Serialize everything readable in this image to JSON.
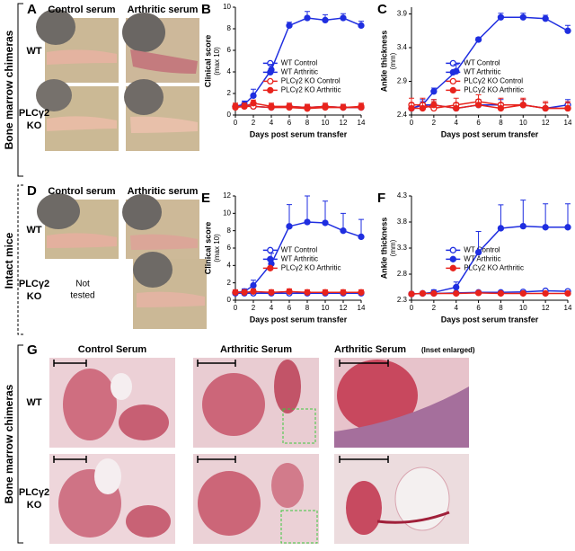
{
  "figure": {
    "panel_a": {
      "letter": "A",
      "columns": [
        "Control serum",
        "Arthritic serum"
      ],
      "rows": [
        [
          "WT"
        ],
        [
          "PLCγ2",
          "KO"
        ]
      ]
    },
    "panel_d": {
      "letter": "D",
      "columns": [
        "Control serum",
        "Arthritic serum"
      ],
      "rows": [
        [
          "WT"
        ],
        [
          "PLCγ2",
          "KO"
        ]
      ],
      "note": [
        "Not",
        "tested"
      ]
    },
    "panel_g": {
      "letter": "G",
      "columns": [
        "Control Serum",
        "Arthritic Serum",
        "Arthritic Serum"
      ],
      "column_note": "(Inset enlarged)",
      "rows": [
        [
          "WT"
        ],
        [
          "PLCγ2",
          "KO"
        ]
      ]
    },
    "side_labels": [
      "Bone marrow chimeras",
      "Intact mice",
      "Bone marrow chimeras"
    ]
  },
  "chart_data": [
    {
      "type": "line",
      "panel": "B",
      "ylabel": "Clinical score",
      "ylabel_note": "(max 10)",
      "xlabel": "Days post serum transfer",
      "x": [
        0,
        1,
        2,
        4,
        6,
        8,
        10,
        12,
        14
      ],
      "xlim": [
        0,
        14
      ],
      "xticks": [
        0,
        2,
        4,
        6,
        8,
        10,
        12,
        14
      ],
      "ylim": [
        0,
        10
      ],
      "yticks": [
        0,
        2,
        4,
        6,
        8,
        10
      ],
      "series": [
        {
          "name": "WT Control",
          "color": "#1f2ee0",
          "filled": false,
          "values": [
            0.8,
            0.9,
            0.8,
            0.7,
            0.8,
            0.7,
            0.8,
            0.7,
            0.7
          ],
          "errors": [
            0.2,
            0.2,
            0.2,
            0.2,
            0.2,
            0.2,
            0.2,
            0.2,
            0.2
          ]
        },
        {
          "name": "WT Arthritic",
          "color": "#1f2ee0",
          "filled": true,
          "values": [
            0.8,
            1.0,
            1.8,
            4.2,
            8.3,
            9.0,
            8.8,
            9.0,
            8.3
          ],
          "errors": [
            0.2,
            0.3,
            0.6,
            0.5,
            0.3,
            0.6,
            0.5,
            0.4,
            0.4
          ]
        },
        {
          "name": "PLCγ2 KO Control",
          "color": "#e8231c",
          "filled": false,
          "values": [
            0.7,
            0.8,
            0.8,
            0.7,
            0.7,
            0.6,
            0.7,
            0.7,
            0.7
          ],
          "errors": [
            0.3,
            0.3,
            0.3,
            0.3,
            0.3,
            0.3,
            0.3,
            0.3,
            0.3
          ]
        },
        {
          "name": "PLCγ2 KO Arthritic",
          "color": "#e8231c",
          "filled": true,
          "values": [
            0.8,
            0.8,
            1.1,
            0.8,
            0.8,
            0.7,
            0.8,
            0.7,
            0.8
          ],
          "errors": [
            0.3,
            0.3,
            0.3,
            0.3,
            0.3,
            0.3,
            0.3,
            0.3,
            0.3
          ]
        }
      ]
    },
    {
      "type": "line",
      "panel": "C",
      "ylabel": "Ankle thickness",
      "ylabel_note": "(mm)",
      "xlabel": "Days post serum transfer",
      "x": [
        0,
        1,
        2,
        4,
        6,
        8,
        10,
        12,
        14
      ],
      "xlim": [
        0,
        14
      ],
      "xticks": [
        0,
        2,
        4,
        6,
        8,
        10,
        12,
        14
      ],
      "ylim": [
        2.4,
        4.0
      ],
      "yticks": [
        2.4,
        2.9,
        3.4,
        3.9
      ],
      "series": [
        {
          "name": "WT Control",
          "color": "#1f2ee0",
          "filled": false,
          "values": [
            2.5,
            2.55,
            2.55,
            2.5,
            2.55,
            2.55,
            2.55,
            2.5,
            2.55
          ],
          "errors": [
            0.08,
            0.08,
            0.08,
            0.08,
            0.08,
            0.08,
            0.08,
            0.08,
            0.08
          ]
        },
        {
          "name": "WT Arthritic",
          "color": "#1f2ee0",
          "filled": true,
          "values": [
            2.5,
            2.55,
            2.75,
            3.05,
            3.52,
            3.85,
            3.85,
            3.83,
            3.65
          ],
          "errors": [
            0.03,
            0.05,
            0.05,
            0.1,
            0.03,
            0.06,
            0.06,
            0.05,
            0.08
          ]
        },
        {
          "name": "PLCγ2 KO Control",
          "color": "#e8231c",
          "filled": false,
          "values": [
            2.55,
            2.55,
            2.5,
            2.55,
            2.6,
            2.55,
            2.55,
            2.5,
            2.5
          ],
          "errors": [
            0.1,
            0.1,
            0.1,
            0.1,
            0.1,
            0.1,
            0.1,
            0.1,
            0.1
          ]
        },
        {
          "name": "PLCγ2 KO Arthritic",
          "color": "#e8231c",
          "filled": true,
          "values": [
            2.5,
            2.5,
            2.55,
            2.5,
            2.55,
            2.5,
            2.55,
            2.5,
            2.5
          ],
          "errors": [
            0.08,
            0.08,
            0.08,
            0.08,
            0.08,
            0.08,
            0.08,
            0.08,
            0.08
          ]
        }
      ]
    },
    {
      "type": "line",
      "panel": "E",
      "ylabel": "Clinical score",
      "ylabel_note": "(max 10)",
      "xlabel": "Days post serum transfer",
      "x": [
        0,
        1,
        2,
        4,
        6,
        8,
        10,
        12,
        14
      ],
      "xlim": [
        0,
        14
      ],
      "xticks": [
        0,
        2,
        4,
        6,
        8,
        10,
        12,
        14
      ],
      "ylim": [
        0,
        12
      ],
      "yticks": [
        0,
        2,
        4,
        6,
        8,
        10,
        12
      ],
      "series": [
        {
          "name": "WT Control",
          "color": "#1f2ee0",
          "filled": false,
          "values": [
            0.8,
            0.8,
            0.8,
            0.8,
            0.8,
            0.8,
            0.8,
            0.8,
            0.8
          ],
          "errors": [
            0.2,
            0.2,
            0.2,
            0.2,
            0.2,
            0.2,
            0.2,
            0.2,
            0.2
          ]
        },
        {
          "name": "WT Arthritic",
          "color": "#1f2ee0",
          "filled": true,
          "values": [
            0.9,
            1.0,
            1.7,
            4.2,
            8.5,
            9.0,
            8.9,
            8.0,
            7.3
          ],
          "errors": [
            0.2,
            0.3,
            0.6,
            1.2,
            2.5,
            3.0,
            2.5,
            2.0,
            2.0
          ]
        },
        {
          "name": "PLCγ2 KO Arthritic",
          "color": "#e8231c",
          "filled": true,
          "values": [
            0.9,
            0.9,
            1.0,
            0.9,
            1.0,
            0.9,
            0.9,
            0.9,
            0.9
          ],
          "errors": [
            0.3,
            0.3,
            0.3,
            0.3,
            0.3,
            0.3,
            0.3,
            0.3,
            0.3
          ]
        }
      ]
    },
    {
      "type": "line",
      "panel": "F",
      "ylabel": "Ankle thickness",
      "ylabel_note": "(mm)",
      "xlabel": "Days post serum transfer",
      "x": [
        0,
        1,
        2,
        4,
        6,
        8,
        10,
        12,
        14
      ],
      "xlim": [
        0,
        14
      ],
      "xticks": [
        0,
        2,
        4,
        6,
        8,
        10,
        12,
        14
      ],
      "ylim": [
        2.3,
        4.3
      ],
      "yticks": [
        2.3,
        2.8,
        3.3,
        3.8,
        4.3
      ],
      "series": [
        {
          "name": "WT Control",
          "color": "#1f2ee0",
          "filled": false,
          "values": [
            2.42,
            2.43,
            2.43,
            2.44,
            2.45,
            2.45,
            2.46,
            2.48,
            2.47
          ],
          "errors": [
            0.02,
            0.02,
            0.02,
            0.02,
            0.02,
            0.02,
            0.02,
            0.02,
            0.02
          ]
        },
        {
          "name": "WT Arthritic",
          "color": "#1f2ee0",
          "filled": true,
          "values": [
            2.42,
            2.43,
            2.45,
            2.55,
            3.22,
            3.68,
            3.72,
            3.7,
            3.7
          ],
          "errors": [
            0.02,
            0.03,
            0.05,
            0.1,
            0.4,
            0.45,
            0.5,
            0.45,
            0.45
          ]
        },
        {
          "name": "PLCγ2 KO Arthritic",
          "color": "#e8231c",
          "filled": true,
          "values": [
            2.42,
            2.43,
            2.43,
            2.43,
            2.44,
            2.43,
            2.43,
            2.43,
            2.43
          ],
          "errors": [
            0.02,
            0.02,
            0.02,
            0.02,
            0.02,
            0.02,
            0.02,
            0.02,
            0.02
          ]
        }
      ]
    }
  ]
}
